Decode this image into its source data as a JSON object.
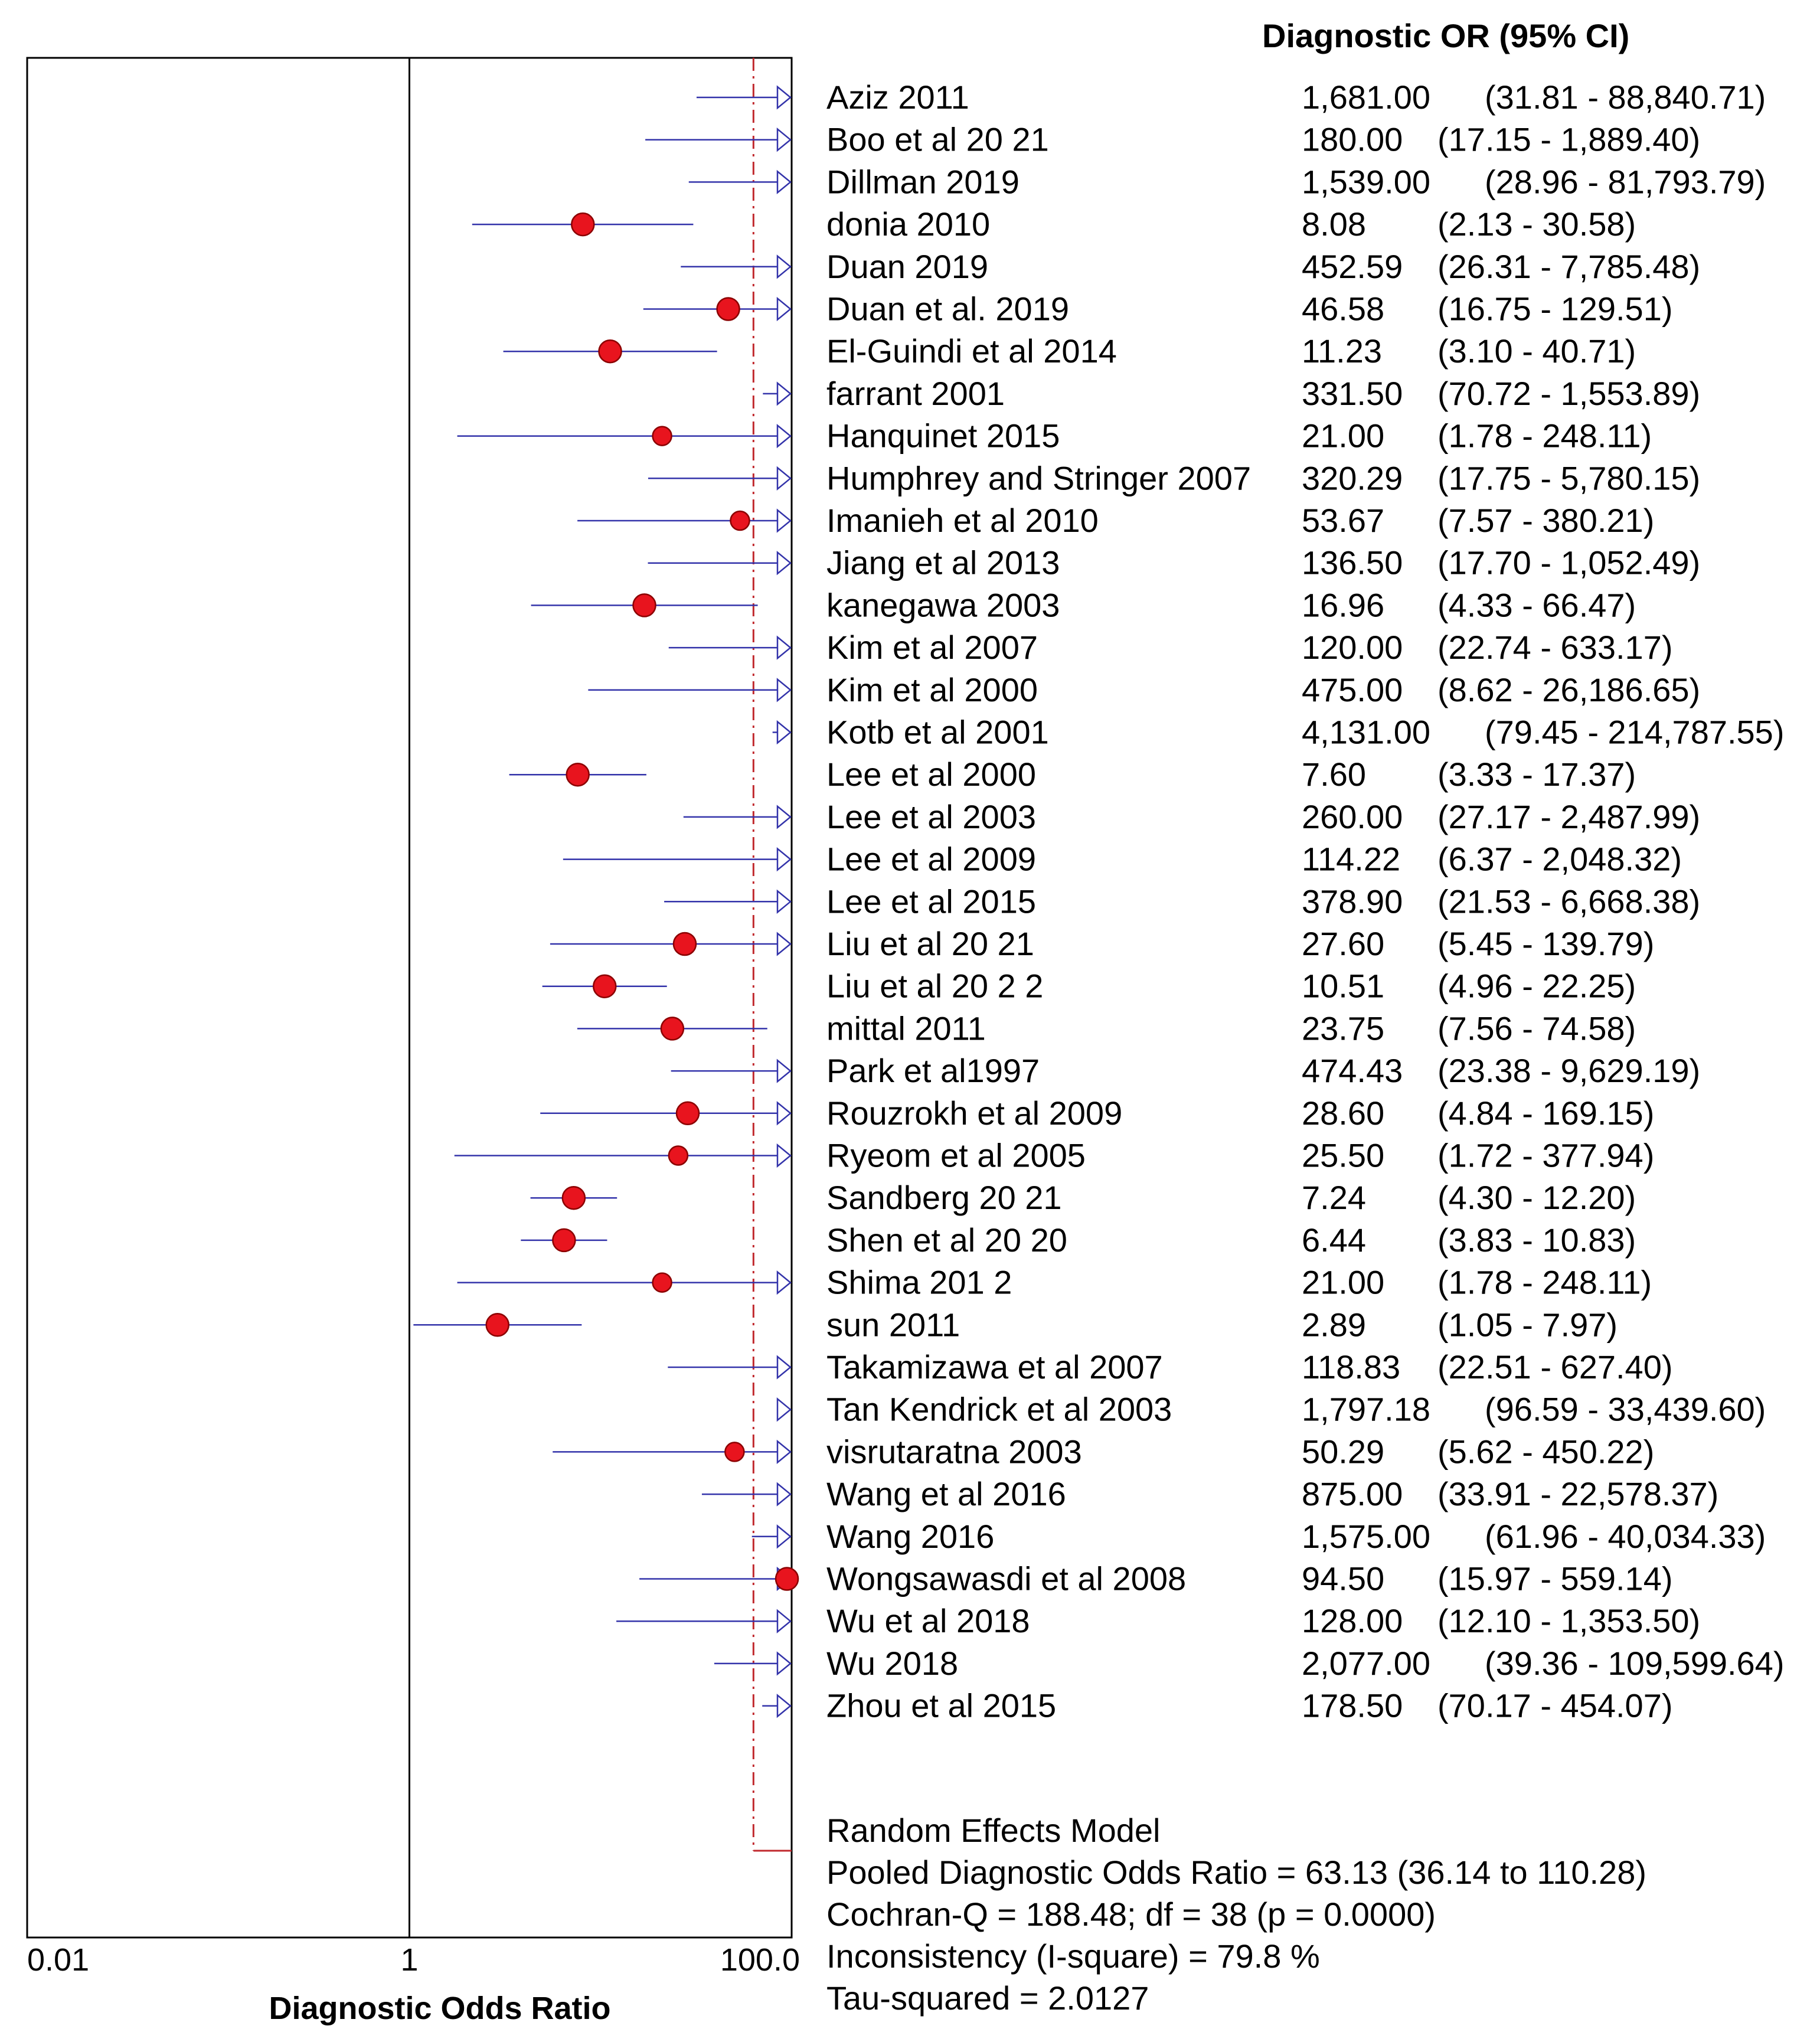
{
  "chart_data": {
    "type": "forest",
    "column_header": "Diagnostic OR (95% CI)",
    "xlabel": "Diagnostic Odds Ratio",
    "x_scale": "log",
    "xlim": [
      0.01,
      100.0
    ],
    "x_ticks": [
      "0.01",
      "1",
      "100.0"
    ],
    "reference_line": 1,
    "pooled_line": 63.13,
    "studies": [
      {
        "name": "Aziz 2011",
        "or": 1681.0,
        "lo": 31.81,
        "hi": 88840.71,
        "text": "1,681.00",
        "ci_text": "(31.81 - 88,840.71)"
      },
      {
        "name": "Boo et al 20 21",
        "or": 180.0,
        "lo": 17.15,
        "hi": 1889.4,
        "text": "180.00",
        "ci_text": "(17.15 - 1,889.40)"
      },
      {
        "name": "Dillman 2019",
        "or": 1539.0,
        "lo": 28.96,
        "hi": 81793.79,
        "text": "1,539.00",
        "ci_text": "(28.96 - 81,793.79)"
      },
      {
        "name": "donia 2010",
        "or": 8.08,
        "lo": 2.13,
        "hi": 30.58,
        "text": "8.08",
        "ci_text": "(2.13 - 30.58)"
      },
      {
        "name": "Duan        2019",
        "or": 452.59,
        "lo": 26.31,
        "hi": 7785.48,
        "text": "452.59",
        "ci_text": "(26.31 - 7,785.48)"
      },
      {
        "name": "Duan et al. 2019",
        "or": 46.58,
        "lo": 16.75,
        "hi": 129.51,
        "text": "46.58",
        "ci_text": "(16.75 - 129.51)"
      },
      {
        "name": "El-Guindi et al  2014",
        "or": 11.23,
        "lo": 3.1,
        "hi": 40.71,
        "text": "11.23",
        "ci_text": "(3.10 - 40.71)"
      },
      {
        "name": "farrant 2001",
        "or": 331.5,
        "lo": 70.72,
        "hi": 1553.89,
        "text": "331.50",
        "ci_text": "(70.72 - 1,553.89)"
      },
      {
        "name": "Hanquinet 2015",
        "or": 21.0,
        "lo": 1.78,
        "hi": 248.11,
        "text": "21.00",
        "ci_text": "(1.78 - 248.11)"
      },
      {
        "name": "Humphrey and Stringer  2007",
        "or": 320.29,
        "lo": 17.75,
        "hi": 5780.15,
        "text": "320.29",
        "ci_text": "(17.75 - 5,780.15)"
      },
      {
        "name": "Imanieh et al  2010",
        "or": 53.67,
        "lo": 7.57,
        "hi": 380.21,
        "text": "53.67",
        "ci_text": "(7.57 - 380.21)"
      },
      {
        "name": "Jiang et al  2013",
        "or": 136.5,
        "lo": 17.7,
        "hi": 1052.49,
        "text": "136.50",
        "ci_text": "(17.70 - 1,052.49)"
      },
      {
        "name": "kanegawa 2003",
        "or": 16.96,
        "lo": 4.33,
        "hi": 66.47,
        "text": "16.96",
        "ci_text": "(4.33 - 66.47)"
      },
      {
        "name": "Kim et al  2007",
        "or": 120.0,
        "lo": 22.74,
        "hi": 633.17,
        "text": "120.00",
        "ci_text": "(22.74 - 633.17)"
      },
      {
        "name": "Kim et al 2000",
        "or": 475.0,
        "lo": 8.62,
        "hi": 26186.65,
        "text": "475.00",
        "ci_text": "(8.62 - 26,186.65)"
      },
      {
        "name": "Kotb et al  2001",
        "or": 4131.0,
        "lo": 79.45,
        "hi": 214787.55,
        "text": "4,131.00",
        "ci_text": "(79.45 - 214,787.55)"
      },
      {
        "name": "Lee et al  2000",
        "or": 7.6,
        "lo": 3.33,
        "hi": 17.37,
        "text": "7.60",
        "ci_text": "(3.33 - 17.37)"
      },
      {
        "name": "Lee et al  2003",
        "or": 260.0,
        "lo": 27.17,
        "hi": 2487.99,
        "text": "260.00",
        "ci_text": "(27.17 - 2,487.99)"
      },
      {
        "name": "Lee et al  2009",
        "or": 114.22,
        "lo": 6.37,
        "hi": 2048.32,
        "text": "114.22",
        "ci_text": "(6.37 - 2,048.32)"
      },
      {
        "name": "Lee et al  2015",
        "or": 378.9,
        "lo": 21.53,
        "hi": 6668.38,
        "text": "378.90",
        "ci_text": "(21.53 - 6,668.38)"
      },
      {
        "name": "Liu et al 20 21",
        "or": 27.6,
        "lo": 5.45,
        "hi": 139.79,
        "text": "27.60",
        "ci_text": "(5.45 - 139.79)"
      },
      {
        "name": "Liu et al 20 2 2",
        "or": 10.51,
        "lo": 4.96,
        "hi": 22.25,
        "text": "10.51",
        "ci_text": "(4.96 - 22.25)"
      },
      {
        "name": "mittal 2011",
        "or": 23.75,
        "lo": 7.56,
        "hi": 74.58,
        "text": "23.75",
        "ci_text": "(7.56 - 74.58)"
      },
      {
        "name": "Park et al1997",
        "or": 474.43,
        "lo": 23.38,
        "hi": 9629.19,
        "text": "474.43",
        "ci_text": "(23.38 - 9,629.19)"
      },
      {
        "name": "Rouzrokh et al  2009",
        "or": 28.6,
        "lo": 4.84,
        "hi": 169.15,
        "text": "28.60",
        "ci_text": "(4.84 - 169.15)"
      },
      {
        "name": "Ryeom et al 2005",
        "or": 25.5,
        "lo": 1.72,
        "hi": 377.94,
        "text": "25.50",
        "ci_text": "(1.72 - 377.94)"
      },
      {
        "name": "Sandberg 20 21",
        "or": 7.24,
        "lo": 4.3,
        "hi": 12.2,
        "text": "7.24",
        "ci_text": "(4.30 - 12.20)"
      },
      {
        "name": "Shen et al 20 20",
        "or": 6.44,
        "lo": 3.83,
        "hi": 10.83,
        "text": "6.44",
        "ci_text": "(3.83 - 10.83)"
      },
      {
        "name": "Shima 201 2",
        "or": 21.0,
        "lo": 1.78,
        "hi": 248.11,
        "text": "21.00",
        "ci_text": "(1.78 - 248.11)"
      },
      {
        "name": "sun 2011",
        "or": 2.89,
        "lo": 1.05,
        "hi": 7.97,
        "text": "2.89",
        "ci_text": "(1.05 - 7.97)"
      },
      {
        "name": "Takamizawa et al 2007",
        "or": 118.83,
        "lo": 22.51,
        "hi": 627.4,
        "text": "118.83",
        "ci_text": "(22.51 - 627.40)"
      },
      {
        "name": "Tan Kendrick et al  2003",
        "or": 1797.18,
        "lo": 96.59,
        "hi": 33439.6,
        "text": "1,797.18",
        "ci_text": "(96.59 - 33,439.60)"
      },
      {
        "name": "visrutaratna 2003",
        "or": 50.29,
        "lo": 5.62,
        "hi": 450.22,
        "text": "50.29",
        "ci_text": "(5.62 - 450.22)"
      },
      {
        "name": "Wang et al 2016",
        "or": 875.0,
        "lo": 33.91,
        "hi": 22578.37,
        "text": "875.00",
        "ci_text": "(33.91 - 22,578.37)"
      },
      {
        "name": "Wang 2016",
        "or": 1575.0,
        "lo": 61.96,
        "hi": 40034.33,
        "text": "1,575.00",
        "ci_text": "(61.96 - 40,034.33)"
      },
      {
        "name": "Wongsawasdi et al 2008",
        "or": 94.5,
        "lo": 15.97,
        "hi": 559.14,
        "text": "94.50",
        "ci_text": "(15.97 - 559.14)"
      },
      {
        "name": "Wu et al 2018",
        "or": 128.0,
        "lo": 12.1,
        "hi": 1353.5,
        "text": "128.00",
        "ci_text": "(12.10 - 1,353.50)"
      },
      {
        "name": "Wu 2018",
        "or": 2077.0,
        "lo": 39.36,
        "hi": 109599.64,
        "text": "2,077.00",
        "ci_text": "(39.36 - 109,599.64)"
      },
      {
        "name": "Zhou et al  2015",
        "or": 178.5,
        "lo": 70.17,
        "hi": 454.07,
        "text": "178.50",
        "ci_text": "(70.17 - 454.07)"
      }
    ],
    "summary": [
      "Random Effects Model",
      "Pooled Diagnostic Odds Ratio = 63.13 (36.14 to 110.28)",
      "Cochran-Q = 188.48; df =  38 (p = 0.0000)",
      "Inconsistency (I-square) = 79.8 %",
      "Tau-squared = 2.0127"
    ],
    "colors": {
      "ci_line": "#3333aa",
      "marker_fill": "#e8141e",
      "marker_stroke": "#8b0000",
      "pooled_line": "#c0282d",
      "axis": "#000000"
    }
  }
}
